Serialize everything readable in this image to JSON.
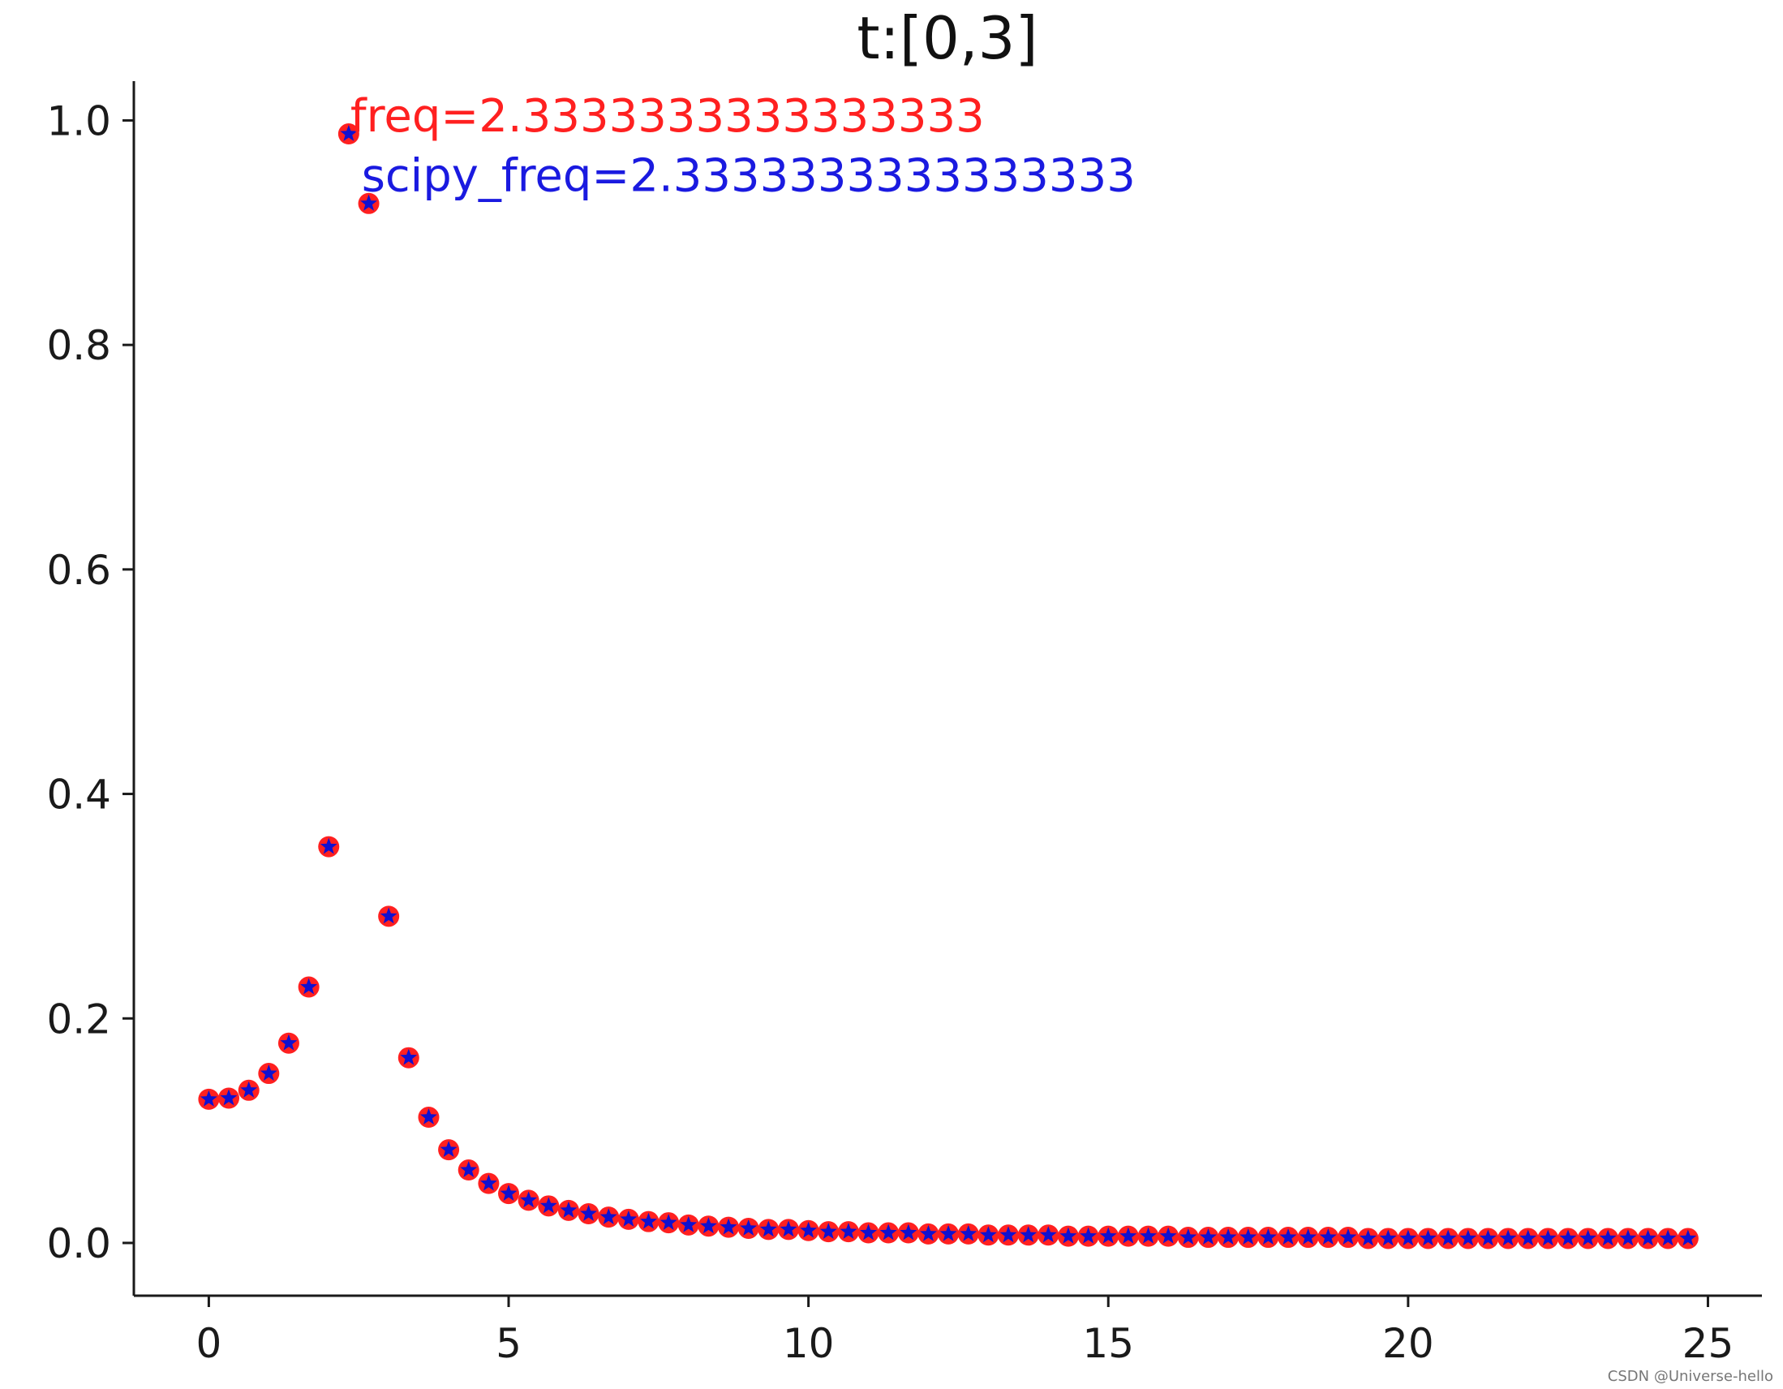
{
  "chart_data": {
    "type": "scatter",
    "title": "t:[0,3]",
    "xlabel": "",
    "ylabel": "",
    "xlim": [
      -1.25,
      25.9
    ],
    "ylim": [
      -0.047,
      1.035
    ],
    "xticks": [
      0,
      5,
      10,
      15,
      20,
      25
    ],
    "xtick_labels": [
      "0",
      "5",
      "10",
      "15",
      "20",
      "25"
    ],
    "yticks": [
      0.0,
      0.2,
      0.4,
      0.6,
      0.8,
      1.0
    ],
    "ytick_labels": [
      "0.0",
      "0.2",
      "0.4",
      "0.6",
      "0.8",
      "1.0"
    ],
    "grid": false,
    "spines": "left-bottom",
    "x": [
      0.0,
      0.333,
      0.667,
      1.0,
      1.333,
      1.667,
      2.0,
      2.333,
      2.667,
      3.0,
      3.333,
      3.667,
      4.0,
      4.333,
      4.667,
      5.0,
      5.333,
      5.667,
      6.0,
      6.333,
      6.667,
      7.0,
      7.333,
      7.667,
      8.0,
      8.333,
      8.667,
      9.0,
      9.333,
      9.667,
      10.0,
      10.333,
      10.667,
      11.0,
      11.333,
      11.667,
      12.0,
      12.333,
      12.667,
      13.0,
      13.333,
      13.667,
      14.0,
      14.333,
      14.667,
      15.0,
      15.333,
      15.667,
      16.0,
      16.333,
      16.667,
      17.0,
      17.333,
      17.667,
      18.0,
      18.333,
      18.667,
      19.0,
      19.333,
      19.667,
      20.0,
      20.333,
      20.667,
      21.0,
      21.333,
      21.667,
      22.0,
      22.333,
      22.667,
      23.0,
      23.333,
      23.667,
      24.0,
      24.333,
      24.667
    ],
    "series": [
      {
        "marker": "circle",
        "color": "#ff2020",
        "values": [
          0.128,
          0.129,
          0.136,
          0.151,
          0.178,
          0.228,
          0.353,
          0.988,
          0.926,
          0.291,
          0.165,
          0.112,
          0.083,
          0.065,
          0.053,
          0.044,
          0.038,
          0.033,
          0.029,
          0.026,
          0.023,
          0.021,
          0.019,
          0.018,
          0.016,
          0.015,
          0.014,
          0.013,
          0.012,
          0.012,
          0.011,
          0.01,
          0.01,
          0.009,
          0.009,
          0.009,
          0.008,
          0.008,
          0.008,
          0.007,
          0.007,
          0.007,
          0.007,
          0.006,
          0.006,
          0.006,
          0.006,
          0.006,
          0.006,
          0.005,
          0.005,
          0.005,
          0.005,
          0.005,
          0.005,
          0.005,
          0.005,
          0.005,
          0.004,
          0.004,
          0.004,
          0.004,
          0.004,
          0.004,
          0.004,
          0.004,
          0.004,
          0.004,
          0.004,
          0.004,
          0.004,
          0.004,
          0.004,
          0.004,
          0.004
        ]
      },
      {
        "marker": "star",
        "color": "#1010d0",
        "values": [
          0.128,
          0.129,
          0.136,
          0.151,
          0.178,
          0.228,
          0.353,
          0.988,
          0.926,
          0.291,
          0.165,
          0.112,
          0.083,
          0.065,
          0.053,
          0.044,
          0.038,
          0.033,
          0.029,
          0.026,
          0.023,
          0.021,
          0.019,
          0.018,
          0.016,
          0.015,
          0.014,
          0.013,
          0.012,
          0.012,
          0.011,
          0.01,
          0.01,
          0.009,
          0.009,
          0.009,
          0.008,
          0.008,
          0.008,
          0.007,
          0.007,
          0.007,
          0.007,
          0.006,
          0.006,
          0.006,
          0.006,
          0.006,
          0.006,
          0.005,
          0.005,
          0.005,
          0.005,
          0.005,
          0.005,
          0.005,
          0.005,
          0.005,
          0.004,
          0.004,
          0.004,
          0.004,
          0.004,
          0.004,
          0.004,
          0.004,
          0.004,
          0.004,
          0.004,
          0.004,
          0.004,
          0.004,
          0.004,
          0.004,
          0.004
        ]
      }
    ],
    "annotations": [
      {
        "text": "freq=2.3333333333333333",
        "x": 2.333,
        "y": 0.988,
        "color": "#ff2020"
      },
      {
        "text": "scipy_freq=2.3333333333333333",
        "x": 2.52,
        "y": 0.935,
        "color": "#1a1ae0"
      }
    ]
  },
  "watermark": "CSDN @Universe-hello"
}
